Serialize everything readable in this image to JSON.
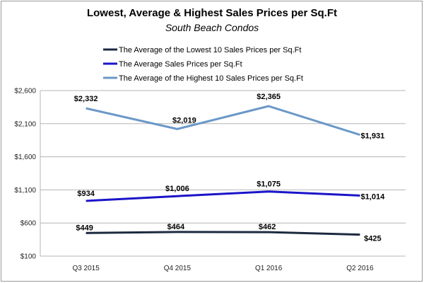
{
  "chart_data": {
    "type": "line",
    "title": "Lowest, Average & Highest Sales Prices per Sq.Ft",
    "subtitle": "South Beach Condos",
    "categories": [
      "Q3 2015",
      "Q4 2015",
      "Q1 2016",
      "Q2 2016"
    ],
    "ylim": [
      100,
      2600
    ],
    "yticks": [
      100,
      600,
      1100,
      1600,
      2100,
      2600
    ],
    "ytick_labels": [
      "$100",
      "$600",
      "$1,100",
      "$1,600",
      "$2,100",
      "$2,600"
    ],
    "grid": "horizontal",
    "legend_position": "top-center",
    "series": [
      {
        "name": "The Average of the Lowest 10 Sales Prices per Sq.Ft",
        "values": [
          449,
          464,
          462,
          425
        ],
        "labels": [
          "$449",
          "$464",
          "$462",
          "$425"
        ],
        "color": "#1c2a3f"
      },
      {
        "name": "The Average Sales Prices per Sq.Ft",
        "values": [
          934,
          1006,
          1075,
          1014
        ],
        "labels": [
          "$934",
          "$1,006",
          "$1,075",
          "$1,014"
        ],
        "color": "#1a14c8"
      },
      {
        "name": "The Average of the Highest 10 Sales Prices per Sq.Ft",
        "values": [
          2332,
          2019,
          2365,
          1931
        ],
        "labels": [
          "$2,332",
          "$2,019",
          "$2,365",
          "$1,931"
        ],
        "color": "#6b98c8"
      }
    ]
  }
}
